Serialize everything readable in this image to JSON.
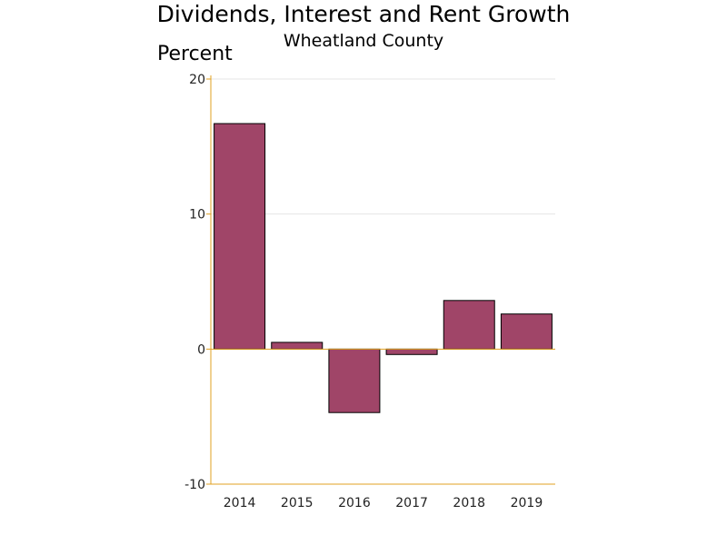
{
  "chart_data": {
    "type": "bar",
    "title": "Dividends, Interest and Rent Growth",
    "subtitle": "Wheatland County",
    "ylabel": "Percent",
    "xlabel": "",
    "categories": [
      "2014",
      "2015",
      "2016",
      "2017",
      "2018",
      "2019"
    ],
    "values": [
      16.7,
      0.5,
      -4.7,
      -0.4,
      3.6,
      2.6
    ],
    "ylim": [
      -10,
      20
    ],
    "yticks": [
      20,
      10,
      0,
      -10
    ],
    "grid": true,
    "colors": {
      "bar": "#a04568",
      "bar_outline": "#000000",
      "axis": "#e0a020",
      "grid": "#e4e4e4"
    }
  }
}
